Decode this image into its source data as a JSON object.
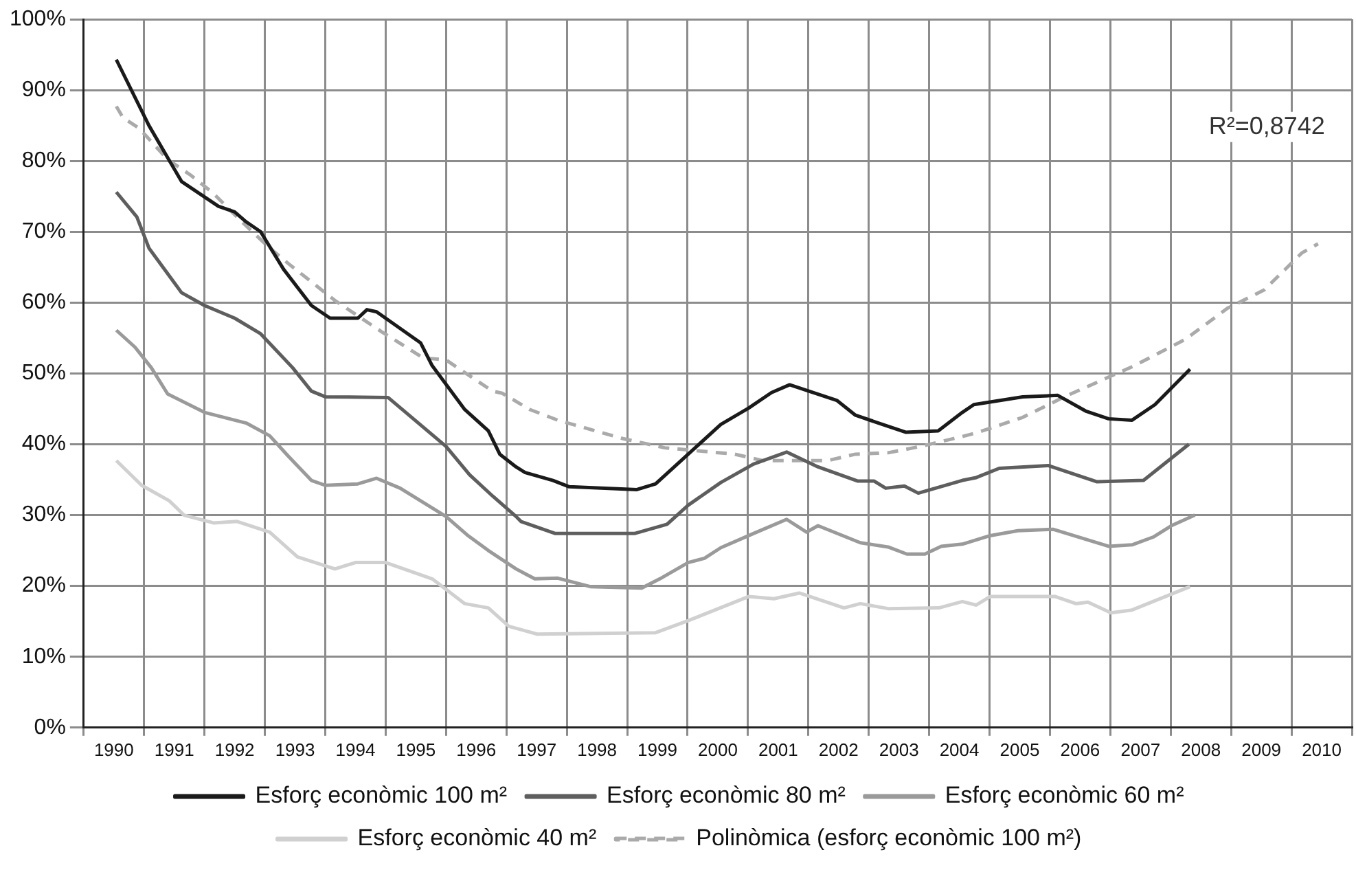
{
  "chart_data": {
    "type": "line",
    "annotations": [
      "R²=0,8742"
    ],
    "xlim": [
      1990,
      2011
    ],
    "xticks": [
      {
        "value": 1990,
        "label": null
      },
      {
        "value": 1990.5,
        "label": "1990"
      },
      {
        "value": 1991,
        "label": null
      },
      {
        "value": 1991.5,
        "label": "1991"
      },
      {
        "value": 1992,
        "label": null
      },
      {
        "value": 1992.5,
        "label": "1992"
      },
      {
        "value": 1993,
        "label": null
      },
      {
        "value": 1993.5,
        "label": "1993"
      },
      {
        "value": 1994,
        "label": null
      },
      {
        "value": 1994.5,
        "label": "1994"
      },
      {
        "value": 1995,
        "label": null
      },
      {
        "value": 1995.5,
        "label": "1995"
      },
      {
        "value": 1996,
        "label": null
      },
      {
        "value": 1996.5,
        "label": "1996"
      },
      {
        "value": 1997,
        "label": null
      },
      {
        "value": 1997.5,
        "label": "1997"
      },
      {
        "value": 1998,
        "label": null
      },
      {
        "value": 1998.5,
        "label": "1998"
      },
      {
        "value": 1999,
        "label": null
      },
      {
        "value": 1999.5,
        "label": "1999"
      },
      {
        "value": 2000,
        "label": null
      },
      {
        "value": 2000.5,
        "label": "2000"
      },
      {
        "value": 2001,
        "label": null
      },
      {
        "value": 2001.5,
        "label": "2001"
      },
      {
        "value": 2002,
        "label": null
      },
      {
        "value": 2002.5,
        "label": "2002"
      },
      {
        "value": 2003,
        "label": null
      },
      {
        "value": 2003.5,
        "label": "2003"
      },
      {
        "value": 2004,
        "label": null
      },
      {
        "value": 2004.5,
        "label": "2004"
      },
      {
        "value": 2005,
        "label": null
      },
      {
        "value": 2005.5,
        "label": "2005"
      },
      {
        "value": 2006,
        "label": null
      },
      {
        "value": 2006.5,
        "label": "2006"
      },
      {
        "value": 2007,
        "label": null
      },
      {
        "value": 2007.5,
        "label": "2007"
      },
      {
        "value": 2008,
        "label": null
      },
      {
        "value": 2008.5,
        "label": "2008"
      },
      {
        "value": 2009,
        "label": null
      },
      {
        "value": 2009.5,
        "label": "2009"
      },
      {
        "value": 2010,
        "label": null
      },
      {
        "value": 2010.5,
        "label": "2010"
      },
      {
        "value": 2011,
        "label": null
      }
    ],
    "ylim": [
      0,
      100
    ],
    "yticks": [
      {
        "value": 0,
        "label": "0%"
      },
      {
        "value": 10,
        "label": "10%"
      },
      {
        "value": 20,
        "label": "20%"
      },
      {
        "value": 30,
        "label": "30%"
      },
      {
        "value": 40,
        "label": "40%"
      },
      {
        "value": 50,
        "label": "50%"
      },
      {
        "value": 60,
        "label": "60%"
      },
      {
        "value": 70,
        "label": "70%"
      },
      {
        "value": 80,
        "label": "80%"
      },
      {
        "value": 90,
        "label": "90%"
      },
      {
        "value": 100,
        "label": "100%"
      }
    ],
    "grid": true,
    "legend": "bottom",
    "marker": "none",
    "line_style": "solid",
    "series": [
      {
        "name": "Esforç econòmic 100 m²",
        "color": "#1a1a1a",
        "x": [
          1990.54,
          1991.08,
          1991.62,
          1992.23,
          1992.5,
          1992.69,
          1992.93,
          1993.31,
          1993.77,
          1994.08,
          1994.54,
          1994.69,
          1994.85,
          1995.58,
          1995.77,
          1996.31,
          1996.7,
          1996.89,
          1997.16,
          1997.31,
          1997.77,
          1998.04,
          1999.16,
          1999.47,
          2000.01,
          2000.55,
          2001.01,
          2001.39,
          2001.69,
          2002.47,
          2002.78,
          2003.16,
          2003.61,
          2004.15,
          2004.55,
          2004.74,
          2005.55,
          2006.13,
          2006.59,
          2006.97,
          2007.36,
          2007.74,
          2008.32
        ],
        "values": [
          94.3,
          85.0,
          77.1,
          73.6,
          72.8,
          71.4,
          70.0,
          64.7,
          59.6,
          57.8,
          57.8,
          59.0,
          58.7,
          54.3,
          51.1,
          44.9,
          41.9,
          38.6,
          36.8,
          36.0,
          34.9,
          34.0,
          33.6,
          34.4,
          38.6,
          42.8,
          45.1,
          47.3,
          48.4,
          46.2,
          44.1,
          43.0,
          41.7,
          41.9,
          44.5,
          45.6,
          46.7,
          46.9,
          44.7,
          43.6,
          43.4,
          45.6,
          50.6
        ]
      },
      {
        "name": "Esforç econòmic 80 m²",
        "color": "#5e5e5e",
        "x": [
          1990.54,
          1990.88,
          1991.08,
          1991.62,
          1992.0,
          1992.5,
          1992.93,
          1993.46,
          1993.77,
          1994.0,
          1995.04,
          1996.0,
          1996.39,
          1996.77,
          1997.16,
          1997.24,
          1997.81,
          1999.12,
          1999.66,
          2000.01,
          2000.55,
          2001.09,
          2001.64,
          2002.16,
          2002.82,
          2003.09,
          2003.28,
          2003.59,
          2003.82,
          2004.55,
          2004.78,
          2005.16,
          2005.97,
          2006.78,
          2007.55,
          2008.3
        ],
        "values": [
          75.6,
          72.1,
          67.7,
          61.4,
          59.6,
          57.8,
          55.6,
          50.8,
          47.5,
          46.7,
          46.6,
          39.7,
          35.7,
          32.7,
          29.8,
          29.1,
          27.4,
          27.4,
          28.7,
          31.4,
          34.6,
          37.2,
          38.9,
          36.8,
          34.8,
          34.8,
          33.8,
          34.1,
          33.1,
          34.9,
          35.3,
          36.6,
          37.0,
          34.7,
          34.9,
          40.0
        ]
      },
      {
        "name": "Esforç econòmic 60 m²",
        "color": "#9a9a9a",
        "x": [
          1990.54,
          1990.85,
          1991.12,
          1991.39,
          1992.0,
          1992.69,
          1993.08,
          1993.39,
          1993.77,
          1994.0,
          1994.54,
          1994.85,
          1995.24,
          1996.0,
          1996.35,
          1996.7,
          1997.16,
          1997.47,
          1997.85,
          1998.39,
          1999.24,
          1999.54,
          2000.01,
          2000.28,
          2000.55,
          2001.09,
          2001.64,
          2001.97,
          2002.16,
          2002.86,
          2003.32,
          2003.63,
          2003.93,
          2004.2,
          2004.55,
          2005.01,
          2005.47,
          2006.05,
          2006.97,
          2007.36,
          2007.71,
          2008.01,
          2008.4
        ],
        "values": [
          56.1,
          53.7,
          50.8,
          47.1,
          44.5,
          43.0,
          41.2,
          38.3,
          34.9,
          34.2,
          34.4,
          35.2,
          33.8,
          29.8,
          27.2,
          25.0,
          22.4,
          21.0,
          21.1,
          19.9,
          19.7,
          21.0,
          23.3,
          23.9,
          25.4,
          27.4,
          29.4,
          27.6,
          28.5,
          26.1,
          25.5,
          24.5,
          24.5,
          25.6,
          25.9,
          27.1,
          27.8,
          28.0,
          25.6,
          25.8,
          26.9,
          28.5,
          30.0
        ]
      },
      {
        "name": "Esforç econòmic 40 m²",
        "color": "#d0d0d0",
        "x": [
          1990.54,
          1990.96,
          1991.42,
          1991.66,
          1992.15,
          1992.54,
          1993.08,
          1993.54,
          1994.16,
          1994.5,
          1995.0,
          1995.77,
          1996.31,
          1996.7,
          1997.04,
          1997.51,
          1999.47,
          2000.01,
          2001.01,
          2001.43,
          2001.85,
          2002.59,
          2002.86,
          2003.32,
          2004.16,
          2004.55,
          2004.78,
          2005.01,
          2006.09,
          2006.43,
          2006.63,
          2007.01,
          2007.36,
          2008.32
        ],
        "values": [
          37.7,
          34.2,
          32.0,
          30.0,
          28.9,
          29.1,
          27.6,
          24.1,
          22.4,
          23.3,
          23.3,
          21.0,
          17.5,
          16.9,
          14.3,
          13.2,
          13.4,
          15.1,
          18.5,
          18.2,
          19.0,
          16.9,
          17.5,
          16.8,
          16.9,
          17.8,
          17.3,
          18.5,
          18.5,
          17.5,
          17.7,
          16.2,
          16.6,
          19.9
        ]
      },
      {
        "name": "Polinòmica (esforç econòmic 100 m²)",
        "color": "#aaaaaa",
        "line_style": "dashed",
        "x": [
          1990.54,
          1990.65,
          1990.92,
          1991.39,
          1991.77,
          1992.15,
          1992.62,
          1993.08,
          1993.39,
          1994.16,
          1994.93,
          1995.62,
          1996.0,
          1996.77,
          1996.93,
          1997.39,
          1997.85,
          1998.47,
          1998.93,
          1999.62,
          2000.78,
          2001.24,
          2002.32,
          2002.78,
          2003.32,
          2003.86,
          2004.55,
          2004.78,
          2005.55,
          2006.24,
          2007.4,
          2008.24,
          2008.94,
          2009.55,
          2010.17,
          2010.44
        ],
        "values": [
          87.7,
          86.1,
          84.6,
          80.2,
          78.0,
          75.4,
          71.4,
          67.7,
          65.5,
          60.3,
          55.9,
          52.2,
          51.9,
          47.5,
          47.2,
          44.9,
          43.4,
          41.9,
          40.8,
          39.5,
          38.6,
          37.7,
          37.7,
          38.6,
          38.8,
          39.7,
          41.1,
          41.6,
          43.8,
          46.7,
          51.1,
          54.8,
          59.2,
          61.8,
          67.0,
          68.3
        ]
      }
    ]
  }
}
